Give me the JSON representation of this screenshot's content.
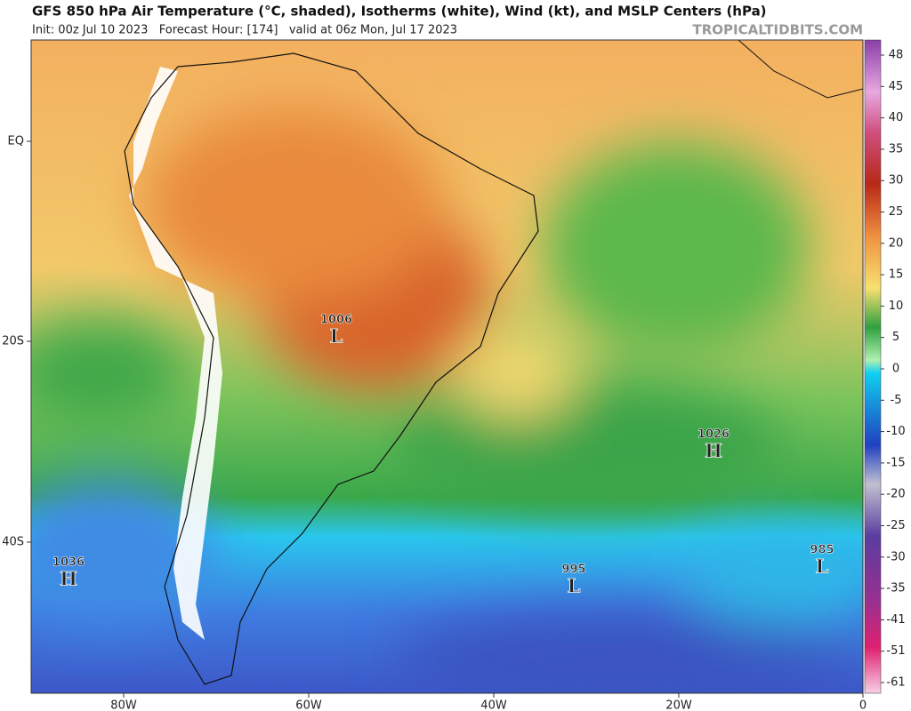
{
  "header": {
    "title": "GFS 850 hPa Air Temperature (°C, shaded), Isotherms (white), Wind (kt), and MSLP Centers (hPa)",
    "subtitle": "Init: 00z Jul 10 2023   Forecast Hour: [174]   valid at 06z Mon, Jul 17 2023",
    "source": "TROPICALTIDBITS.COM"
  },
  "map": {
    "lat_labels": [
      "EQ",
      "20S",
      "40S"
    ],
    "lon_labels": [
      "80W",
      "60W",
      "40W",
      "20W",
      "0"
    ],
    "pressure_centers": [
      {
        "value": "1006",
        "kind": "L"
      },
      {
        "value": "1026",
        "kind": "H"
      },
      {
        "value": "1036",
        "kind": "H"
      },
      {
        "value": "995",
        "kind": "L"
      },
      {
        "value": "985",
        "kind": "L"
      }
    ]
  },
  "colorbar": {
    "labels": [
      "48",
      "45",
      "40",
      "35",
      "30",
      "25",
      "20",
      "15",
      "10",
      "5",
      "0",
      "-5",
      "-10",
      "-15",
      "-20",
      "-25",
      "-30",
      "-35",
      "-41",
      "-51",
      "-61"
    ]
  }
}
